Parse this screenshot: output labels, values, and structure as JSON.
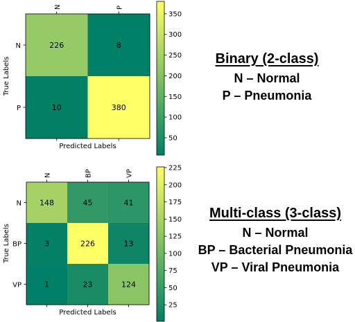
{
  "chart_data": [
    {
      "type": "heatmap",
      "xlabel": "Predicted Labels",
      "ylabel": "True Labels",
      "x_ticks": [
        "N",
        "P"
      ],
      "y_ticks": [
        "N",
        "P"
      ],
      "matrix": [
        [
          226,
          8
        ],
        [
          10,
          380
        ]
      ],
      "colorbar": {
        "range": [
          8,
          380
        ],
        "ticks": [
          "50",
          "100",
          "150",
          "200",
          "250",
          "300",
          "350"
        ]
      },
      "colormap": "summer"
    },
    {
      "type": "heatmap",
      "xlabel": "Predicted Labels",
      "ylabel": "True Labels",
      "x_ticks": [
        "N",
        "BP",
        "VP"
      ],
      "y_ticks": [
        "N",
        "BP",
        "VP"
      ],
      "matrix": [
        [
          148,
          45,
          41
        ],
        [
          3,
          226,
          13
        ],
        [
          1,
          23,
          124
        ]
      ],
      "colorbar": {
        "range": [
          1,
          226
        ],
        "ticks": [
          "25",
          "50",
          "75",
          "100",
          "125",
          "150",
          "175",
          "200",
          "225"
        ]
      },
      "colormap": "summer"
    }
  ],
  "binary_legend": {
    "title": "Binary (2-class)",
    "lines": [
      "N – Normal",
      "P – Pneumonia"
    ]
  },
  "multi_legend": {
    "title": "Multi-class (3-class)",
    "lines": [
      "N – Normal",
      "BP – Bacterial Pneumonia",
      "VP – Viral Pneumonia"
    ]
  }
}
